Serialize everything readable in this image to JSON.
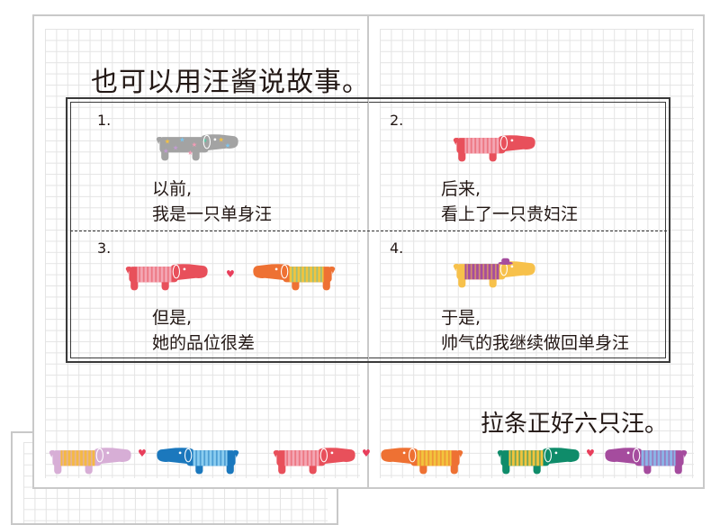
{
  "title": "也可以用汪酱说故事。",
  "subtitle": "拉条正好六只汪。",
  "panels": [
    {
      "number": "1.",
      "line1": "以前,",
      "line2": "我是一只单身汪"
    },
    {
      "number": "2.",
      "line1": "后来,",
      "line2": "看上了一只贵妇汪"
    },
    {
      "number": "3.",
      "line1": "但是,",
      "line2": "她的品位很差"
    },
    {
      "number": "4.",
      "line1": "于是,",
      "line2": "帅气的我继续做回单身汪"
    }
  ],
  "dogs": {
    "panel1": {
      "body": "#a3a3a3",
      "pattern": "stars",
      "facing": "right"
    },
    "panel2": {
      "body": "#e8505b",
      "sweater": "#f4a7b4",
      "facing": "right"
    },
    "panel3a": {
      "body": "#e8505b",
      "sweater": "#f4a7b4",
      "facing": "right"
    },
    "panel3b": {
      "body": "#ee7133",
      "sweater": "#f2c43d",
      "stripe": "#5bbcb3",
      "facing": "left"
    },
    "panel4": {
      "body": "#f7c14b",
      "sweater": "#a54c9e",
      "hat": "#a54c9e",
      "facing": "right"
    },
    "row": [
      {
        "body": "#d7aed6",
        "sweater": "#f5b942",
        "facing": "right"
      },
      {
        "body": "#1b78bd",
        "sweater": "#8bcdf0",
        "facing": "left"
      },
      {
        "body": "#e8505b",
        "sweater": "#f4a7b4",
        "facing": "right"
      },
      {
        "body": "#ee7133",
        "sweater": "#f2c43d",
        "facing": "left"
      },
      {
        "body": "#0f8c6a",
        "sweater": "#f2c43d",
        "facing": "right"
      },
      {
        "body": "#a54c9e",
        "sweater": "#8bb6e8",
        "facing": "left"
      }
    ]
  },
  "heart_icon": "heart-icon",
  "colors": {
    "grid": "#e4e4e4",
    "frame": "#3a3a3a",
    "heart": "#e83e5b"
  }
}
